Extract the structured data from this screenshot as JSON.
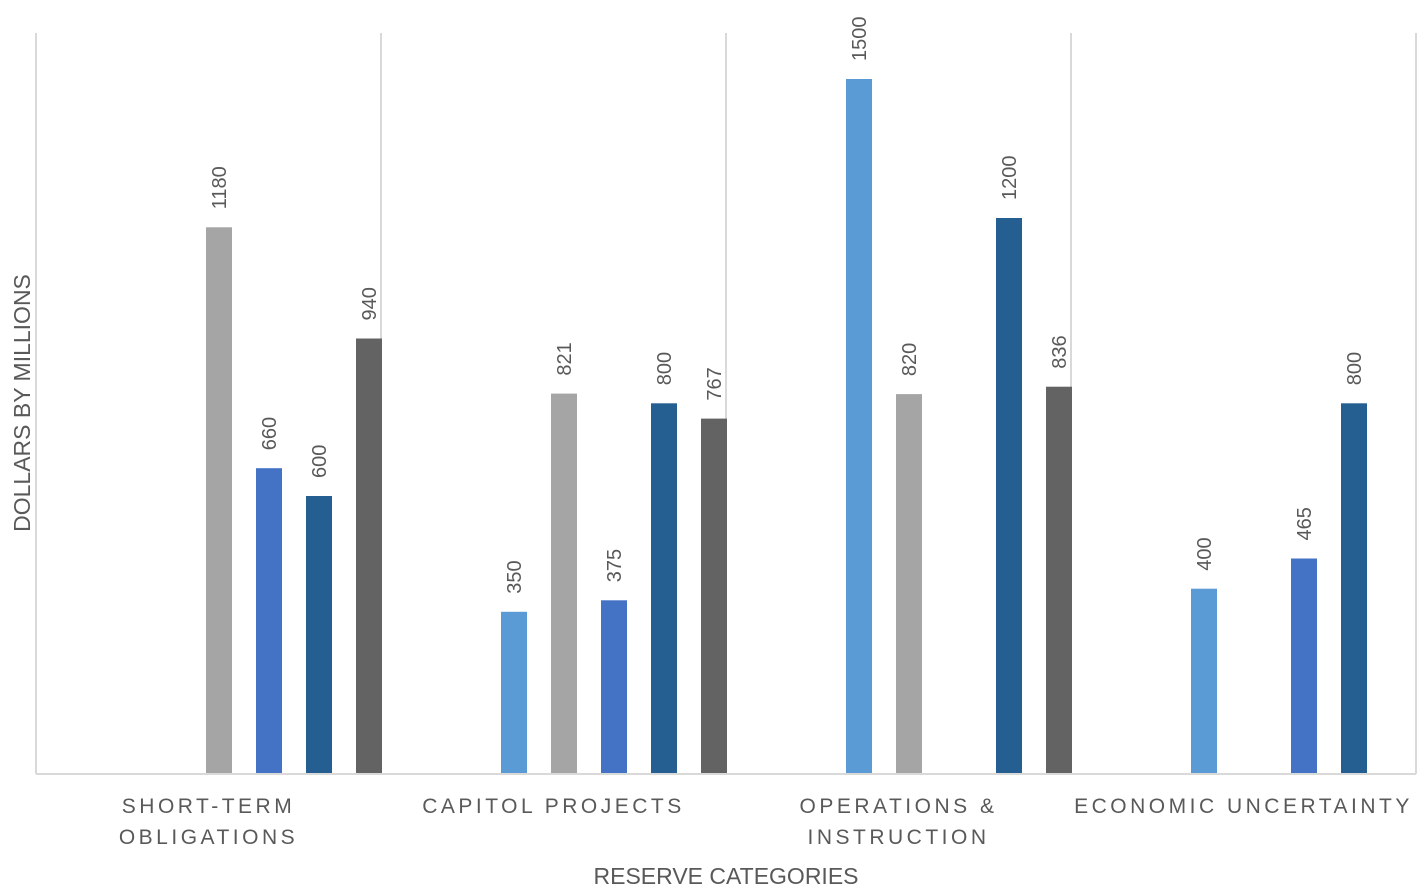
{
  "chart_data": {
    "type": "bar",
    "title": "",
    "xlabel": "RESERVE CATEGORIES",
    "ylabel": "DOLLARS BY MILLIONS",
    "ylim": [
      0,
      1600
    ],
    "grid": false,
    "legend": "none",
    "categories": [
      [
        "SHORT-TERM",
        "OBLIGATIONS"
      ],
      [
        "CAPITOL PROJECTS"
      ],
      [
        "OPERATIONS &",
        "INSTRUCTION"
      ],
      [
        "ECONOMIC UNCERTAINTY"
      ]
    ],
    "series": [
      {
        "color": "#5B9BD5",
        "values": [
          null,
          350,
          1500,
          400
        ]
      },
      {
        "color": "#A5A5A5",
        "values": [
          1180,
          821,
          820,
          null
        ]
      },
      {
        "color": "#4472C4",
        "values": [
          660,
          375,
          null,
          465
        ]
      },
      {
        "color": "#255E91",
        "values": [
          600,
          800,
          1200,
          800
        ]
      },
      {
        "color": "#636363",
        "values": [
          940,
          767,
          836,
          null
        ]
      }
    ],
    "data_labels": true
  },
  "colors": {
    "axis_line": "#D9D9D9",
    "text": "#595959"
  }
}
